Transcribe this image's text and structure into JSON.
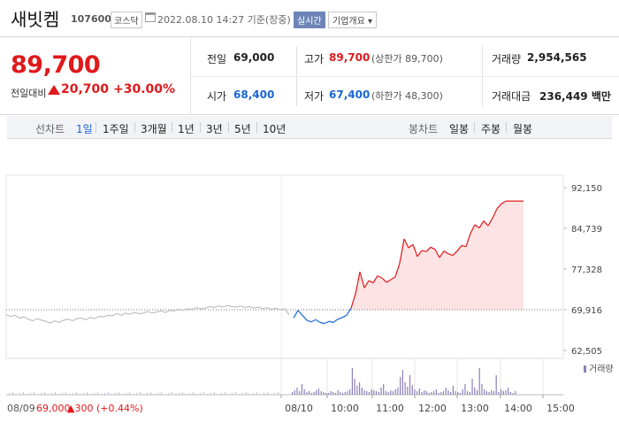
{
  "header": {
    "stock_name": "새빗켐",
    "stock_code": "107600",
    "market": "코스닥",
    "datetime": "2022.08.10 14:27 기준(장중)",
    "realtime_label": "실시간",
    "company_button": "기업개요 ▾"
  },
  "summary": {
    "price": "89,700",
    "change_label": "전일대비",
    "change_value": "20,700",
    "change_pct": "+30.00%",
    "prev_close_label": "전일",
    "prev_close": "69,000",
    "high_label": "고가",
    "high": "89,700",
    "upper_limit": "(상한가 89,700)",
    "volume_label": "거래량",
    "volume": "2,954,565",
    "open_label": "시가",
    "open": "68,400",
    "low_label": "저가",
    "low": "67,400",
    "lower_limit": "(하한가 48,300)",
    "amount_label": "거래대금",
    "amount": "236,449 백만"
  },
  "period_bar": {
    "line_label": "선차트",
    "line_items": [
      "1일",
      "1주일",
      "3개월",
      "1년",
      "3년",
      "5년",
      "10년"
    ],
    "active": "1일",
    "candle_label": "봉차트",
    "candle_items": [
      "일봉",
      "주봉",
      "월봉"
    ]
  },
  "colors": {
    "up": "#e0191b",
    "down": "#1a66d6",
    "prev_day_line": "#b5b5b5",
    "fill": "#fde3e3",
    "volume": "#8c7fb8"
  },
  "chart_data": {
    "type": "line",
    "y_ticks": [
      "92,150",
      "84,739",
      "77,328",
      "69,916",
      "62,505"
    ],
    "y_tick_values": [
      92150,
      84739,
      77328,
      69916,
      62505
    ],
    "ylim": [
      62505,
      92150
    ],
    "baseline": 69916,
    "x_tick_labels": [
      "08/10",
      "10:00",
      "11:00",
      "12:00",
      "13:00",
      "14:00",
      "15:00"
    ],
    "prev_day_label": "08/09",
    "prev_day_close": "69,000",
    "prev_day_change": "▲300",
    "prev_day_pct": "(+0.44%)",
    "volume_legend": "거래량",
    "series": [
      {
        "name": "08/09",
        "x": [
          0,
          5,
          10,
          15,
          20,
          25,
          30,
          35,
          40,
          45,
          50,
          55,
          60,
          65,
          70,
          75,
          80,
          85,
          90,
          95,
          100,
          105,
          110,
          115,
          120,
          125,
          130,
          135,
          140,
          145,
          150,
          155,
          160,
          165,
          170,
          175,
          180,
          185,
          190,
          195,
          200,
          205,
          210,
          215,
          220,
          225,
          230,
          235,
          240,
          245,
          250,
          255,
          260,
          265,
          270,
          275,
          280,
          285,
          290,
          295,
          300,
          305,
          310,
          315,
          320
        ],
        "values": [
          69000,
          68700,
          68900,
          68400,
          68600,
          68200,
          67900,
          68300,
          68000,
          67800,
          67500,
          67900,
          67600,
          68000,
          68200,
          67900,
          68300,
          68400,
          68100,
          68500,
          68300,
          68700,
          68600,
          68900,
          68800,
          69200,
          68900,
          69300,
          69100,
          69400,
          69200,
          69300,
          69600,
          69300,
          69500,
          69700,
          69400,
          69800,
          69700,
          70000,
          69800,
          70100,
          70000,
          70300,
          70100,
          70200,
          70500,
          70300,
          70600,
          70400,
          70700,
          70500,
          70400,
          70600,
          70300,
          70500,
          70200,
          70400,
          70100,
          70300,
          70000,
          70200,
          69900,
          70100,
          69000
        ]
      },
      {
        "name": "08/10",
        "x": [
          325,
          330,
          335,
          340,
          345,
          350,
          355,
          360,
          365,
          370,
          375,
          380,
          385,
          390,
          395,
          400,
          405,
          410,
          415,
          420,
          425,
          430,
          435,
          440,
          445,
          450,
          455,
          460,
          465,
          470,
          475,
          480,
          485,
          490,
          495,
          500,
          505,
          510,
          515,
          520,
          525,
          530,
          535,
          540,
          545,
          550,
          555,
          560,
          565,
          570,
          575,
          580,
          585
        ],
        "values": [
          68400,
          69800,
          68900,
          68000,
          67700,
          68100,
          67600,
          67400,
          67800,
          67600,
          68200,
          68500,
          68900,
          70200,
          72800,
          76800,
          73900,
          75200,
          74800,
          76100,
          75700,
          74900,
          75400,
          75900,
          78400,
          82800,
          81200,
          81800,
          79600,
          80700,
          80500,
          81300,
          80900,
          79400,
          80600,
          80100,
          79800,
          80600,
          81600,
          81400,
          83800,
          85400,
          84800,
          86100,
          85200,
          86600,
          88300,
          89200,
          89700,
          89700,
          89700,
          89700,
          89700
        ]
      }
    ]
  }
}
